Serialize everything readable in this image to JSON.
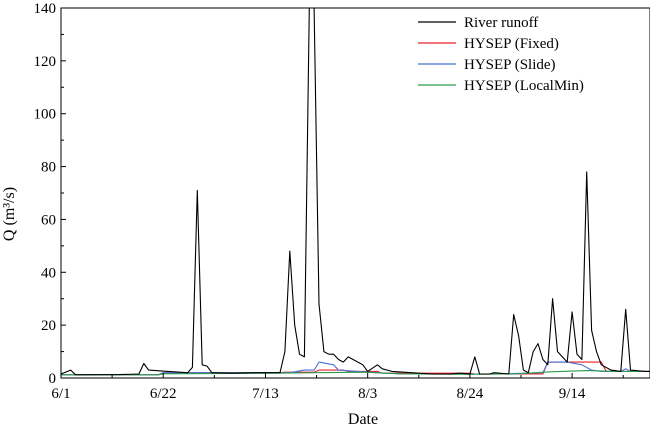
{
  "chart_data": {
    "type": "line",
    "xlabel": "Date",
    "ylabel": "Q (m³/s)",
    "xlim": [
      0,
      121
    ],
    "ylim": [
      0,
      140
    ],
    "yticks": [
      0,
      20,
      40,
      60,
      80,
      100,
      120,
      140
    ],
    "xticks": [
      {
        "day": 0,
        "label": "6/1"
      },
      {
        "day": 21,
        "label": "6/22"
      },
      {
        "day": 42,
        "label": "7/13"
      },
      {
        "day": 63,
        "label": "8/3"
      },
      {
        "day": 84,
        "label": "8/24"
      },
      {
        "day": 105,
        "label": "9/14"
      }
    ],
    "legend_position": "top-right",
    "grid": false,
    "series": [
      {
        "name": "River runoff",
        "color": "#000000",
        "points": [
          [
            0,
            1.5
          ],
          [
            2,
            3
          ],
          [
            3,
            1.2
          ],
          [
            12,
            1.3
          ],
          [
            16,
            1.5
          ],
          [
            17,
            5.5
          ],
          [
            18,
            3
          ],
          [
            22,
            2.5
          ],
          [
            26,
            2
          ],
          [
            27,
            4
          ],
          [
            28,
            71
          ],
          [
            29,
            5
          ],
          [
            30,
            4.5
          ],
          [
            31,
            2
          ],
          [
            35,
            1.8
          ],
          [
            40,
            2
          ],
          [
            45,
            2
          ],
          [
            46,
            10
          ],
          [
            47,
            48
          ],
          [
            48,
            20
          ],
          [
            49,
            9
          ],
          [
            50,
            8
          ],
          [
            51,
            140
          ],
          [
            52,
            140
          ],
          [
            53,
            28
          ],
          [
            54,
            10
          ],
          [
            55,
            9
          ],
          [
            56,
            9
          ],
          [
            57,
            7
          ],
          [
            58,
            6
          ],
          [
            59,
            8
          ],
          [
            60,
            7
          ],
          [
            61,
            6
          ],
          [
            62,
            5
          ],
          [
            63,
            2.5
          ],
          [
            65,
            5
          ],
          [
            66,
            3.5
          ],
          [
            68,
            2.5
          ],
          [
            72,
            2
          ],
          [
            76,
            1.5
          ],
          [
            80,
            1.5
          ],
          [
            82,
            1.8
          ],
          [
            84,
            1.5
          ],
          [
            85,
            8
          ],
          [
            86,
            1.5
          ],
          [
            88,
            1.5
          ],
          [
            89,
            2
          ],
          [
            92,
            1.5
          ],
          [
            93,
            24
          ],
          [
            94,
            16
          ],
          [
            95,
            3
          ],
          [
            96,
            2
          ],
          [
            97,
            10
          ],
          [
            98,
            13
          ],
          [
            99,
            7
          ],
          [
            100,
            5
          ],
          [
            101,
            30
          ],
          [
            102,
            10
          ],
          [
            103,
            8
          ],
          [
            104,
            6
          ],
          [
            105,
            25
          ],
          [
            106,
            9
          ],
          [
            107,
            7
          ],
          [
            108,
            78
          ],
          [
            109,
            18
          ],
          [
            110,
            10
          ],
          [
            111,
            5
          ],
          [
            113,
            3
          ],
          [
            115,
            2.5
          ],
          [
            116,
            26
          ],
          [
            117,
            3
          ],
          [
            120,
            2.5
          ],
          [
            121,
            2.5
          ]
        ]
      },
      {
        "name": "HYSEP (Fixed)",
        "color": "#e8202a",
        "points": [
          [
            0,
            1.2
          ],
          [
            20,
            1.2
          ],
          [
            21,
            2
          ],
          [
            45,
            2
          ],
          [
            46,
            2.2
          ],
          [
            52,
            2.2
          ],
          [
            53,
            3
          ],
          [
            58,
            3
          ],
          [
            59,
            2.5
          ],
          [
            65,
            2.5
          ],
          [
            66,
            1.8
          ],
          [
            84,
            1.8
          ],
          [
            85,
            1.5
          ],
          [
            99,
            1.5
          ],
          [
            100,
            6
          ],
          [
            111,
            6
          ],
          [
            112,
            2.5
          ],
          [
            121,
            2.5
          ]
        ]
      },
      {
        "name": "HYSEP (Slide)",
        "color": "#4a6fd8",
        "points": [
          [
            0,
            1.2
          ],
          [
            20,
            1.2
          ],
          [
            21,
            2
          ],
          [
            45,
            2
          ],
          [
            47,
            2
          ],
          [
            50,
            3
          ],
          [
            52,
            3
          ],
          [
            53,
            6
          ],
          [
            56,
            5
          ],
          [
            57,
            3
          ],
          [
            61,
            2.5
          ],
          [
            65,
            2
          ],
          [
            70,
            1.5
          ],
          [
            84,
            1.5
          ],
          [
            90,
            1.5
          ],
          [
            99,
            2
          ],
          [
            100,
            6
          ],
          [
            104,
            6
          ],
          [
            107,
            5
          ],
          [
            109,
            3
          ],
          [
            111,
            2.5
          ],
          [
            115,
            2.5
          ],
          [
            116,
            3.5
          ],
          [
            117,
            2.5
          ],
          [
            121,
            2.5
          ]
        ]
      },
      {
        "name": "HYSEP (LocalMin)",
        "color": "#2c9a4e",
        "points": [
          [
            0,
            1.2
          ],
          [
            20,
            1.2
          ],
          [
            21,
            1.6
          ],
          [
            44,
            1.8
          ],
          [
            52,
            2
          ],
          [
            62,
            2.2
          ],
          [
            70,
            1.6
          ],
          [
            84,
            1.4
          ],
          [
            94,
            1.6
          ],
          [
            100,
            2.3
          ],
          [
            108,
            2.8
          ],
          [
            114,
            2.5
          ],
          [
            121,
            2.5
          ]
        ]
      }
    ]
  }
}
